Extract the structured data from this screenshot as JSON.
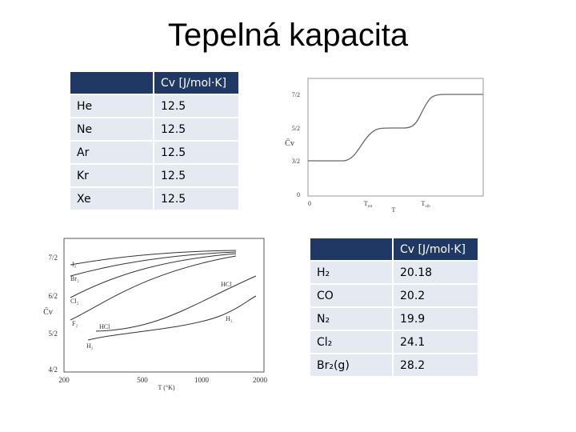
{
  "title": "Tepelná kapacita",
  "table1": {
    "header": [
      "",
      "Cv [J/mol·K]"
    ],
    "rows": [
      [
        "He",
        "12.5"
      ],
      [
        "Ne",
        "12.5"
      ],
      [
        "Ar",
        "12.5"
      ],
      [
        "Kr",
        "12.5"
      ],
      [
        "Xe",
        "12.5"
      ]
    ]
  },
  "table2": {
    "header": [
      "",
      "Cv [J/mol·K]"
    ],
    "rows": [
      [
        "H₂",
        "20.18"
      ],
      [
        "CO",
        "20.2"
      ],
      [
        "N₂",
        "19.9"
      ],
      [
        "Cl₂",
        "24.1"
      ],
      [
        "Br₂(g)",
        "28.2"
      ]
    ]
  },
  "figure1": {
    "ylabel": "C̄v",
    "yticks": [
      "7/2",
      "5/2",
      "3/2",
      "0"
    ],
    "xorigin": "0",
    "xticks": [
      {
        "base": "T",
        "sub": "rot"
      },
      {
        "base": "T",
        "sub": "vib"
      }
    ],
    "xlabel": "T"
  },
  "figure2": {
    "ylabel": "C̄v",
    "yticks": [
      "7/2",
      "6/2",
      "5/2",
      "4/2"
    ],
    "xticks": [
      "200",
      "500",
      "1000",
      "2000"
    ],
    "xlabel": "T (°K)",
    "curve_labels": [
      "I₂",
      "Br₂",
      "Cl₂",
      "F₂",
      "HCl",
      "H₂",
      "HCl",
      "H₂"
    ]
  }
}
